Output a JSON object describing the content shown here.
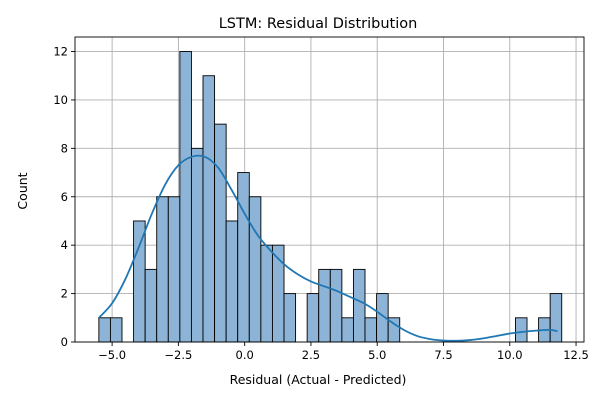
{
  "chart_data": {
    "type": "bar",
    "title": "LSTM: Residual Distribution",
    "xlabel": "Residual (Actual - Predicted)",
    "ylabel": "Count",
    "xlim": [
      -6.4,
      12.8
    ],
    "ylim": [
      0,
      12.6
    ],
    "xticks": [
      -5.0,
      -2.5,
      0.0,
      2.5,
      5.0,
      7.5,
      10.0,
      12.5
    ],
    "xtick_labels": [
      "−5.0",
      "−2.5",
      "0.0",
      "2.5",
      "5.0",
      "7.5",
      "10.0",
      "12.5"
    ],
    "yticks": [
      0,
      2,
      4,
      6,
      8,
      10,
      12
    ],
    "ytick_labels": [
      "0",
      "2",
      "4",
      "6",
      "8",
      "10",
      "12"
    ],
    "grid": true,
    "bins": {
      "start": -5.5,
      "width": 0.4365,
      "counts": [
        1,
        1,
        0,
        5,
        3,
        6,
        6,
        12,
        8,
        11,
        9,
        5,
        7,
        6,
        4,
        4,
        2,
        0,
        2,
        3,
        3,
        1,
        3,
        1,
        2,
        1,
        0,
        0,
        0,
        0,
        0,
        0,
        0,
        0,
        0,
        0,
        1,
        0,
        1,
        2
      ]
    },
    "kde": {
      "x": [
        -5.5,
        -5.0,
        -4.5,
        -4.0,
        -3.5,
        -3.0,
        -2.5,
        -2.0,
        -1.5,
        -1.0,
        -0.5,
        0.0,
        0.5,
        1.0,
        1.5,
        2.0,
        2.5,
        3.0,
        3.5,
        4.0,
        4.5,
        5.0,
        5.5,
        6.0,
        6.5,
        7.0,
        7.5,
        8.0,
        8.5,
        9.0,
        9.5,
        10.0,
        10.5,
        11.0,
        11.5,
        11.8
      ],
      "y": [
        1.0,
        1.6,
        2.6,
        3.9,
        5.3,
        6.5,
        7.3,
        7.65,
        7.65,
        7.2,
        6.3,
        5.3,
        4.4,
        3.75,
        3.2,
        2.8,
        2.5,
        2.3,
        2.1,
        1.85,
        1.6,
        1.25,
        0.85,
        0.5,
        0.25,
        0.12,
        0.06,
        0.05,
        0.08,
        0.15,
        0.25,
        0.35,
        0.42,
        0.47,
        0.5,
        0.45
      ]
    }
  },
  "colors": {
    "bar_fill": "#8db4d6",
    "kde_line": "#1f77b4"
  }
}
